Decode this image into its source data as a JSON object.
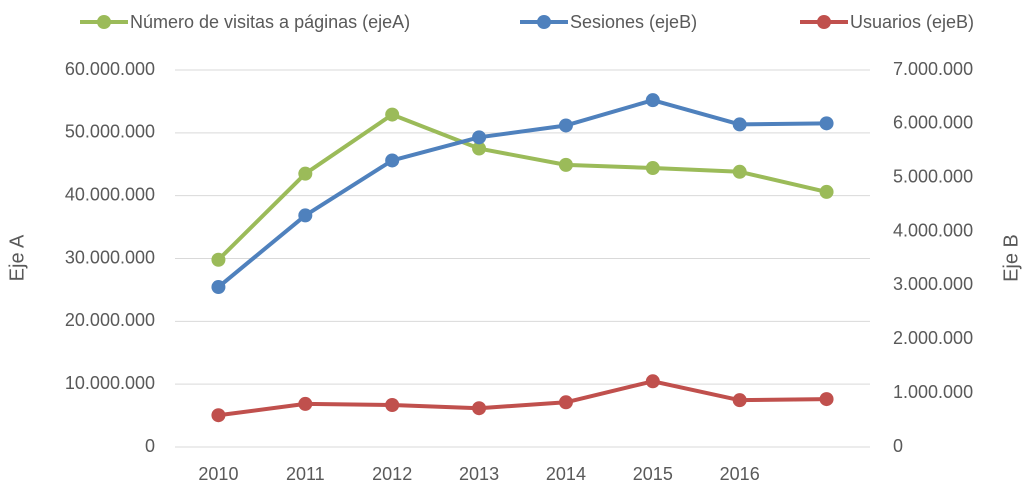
{
  "chart_data": {
    "type": "line",
    "categories": [
      "2010",
      "2011",
      "2012",
      "2013",
      "2014",
      "2015",
      "2016",
      null
    ],
    "series": [
      {
        "name": "Número de visitas a páginas (ejeA)",
        "color": "#9bbb59",
        "values": [
          29800000,
          43500000,
          52900000,
          47500000,
          44900000,
          44400000,
          43800000,
          40600000
        ]
      },
      {
        "name": "Sesiones (ejeB)",
        "color": "#4f81bd",
        "axis": "y2",
        "values": [
          2970000,
          4300000,
          5320000,
          5750000,
          5970000,
          6440000,
          5990000,
          6010000
        ]
      },
      {
        "name": "Usuarios (ejeB)",
        "color": "#c0504d",
        "axis": "y2",
        "values": [
          590000,
          800000,
          780000,
          720000,
          830000,
          1220000,
          870000,
          890000
        ]
      }
    ],
    "ylabel": "Eje A",
    "y2label": "Eje B",
    "ylim": [
      0,
      60000000
    ],
    "yticks": [
      0,
      {
        "value": 10000000,
        "label": "10.000.000"
      },
      {
        "value": 20000000,
        "label": "20.000.000"
      },
      {
        "value": 30000000,
        "label": "30.000.000"
      },
      {
        "value": 40000000,
        "label": "40.000.000"
      },
      {
        "value": 50000000,
        "label": "50.000.000"
      },
      {
        "value": 60000000,
        "label": "60.000.000"
      }
    ],
    "y2lim": [
      0,
      7000000
    ],
    "y2ticks": [
      0,
      {
        "value": 1000000,
        "label": "1.000.000"
      },
      {
        "value": 2000000,
        "label": "2.000.000"
      },
      {
        "value": 3000000,
        "label": "3.000.000"
      },
      {
        "value": 4000000,
        "label": "4.000.000"
      },
      {
        "value": 5000000,
        "label": "5.000.000"
      },
      {
        "value": 6000000,
        "label": "6.000.000"
      },
      {
        "value": 7000000,
        "label": "7.000.000"
      }
    ],
    "grid": true,
    "legend": "top"
  }
}
